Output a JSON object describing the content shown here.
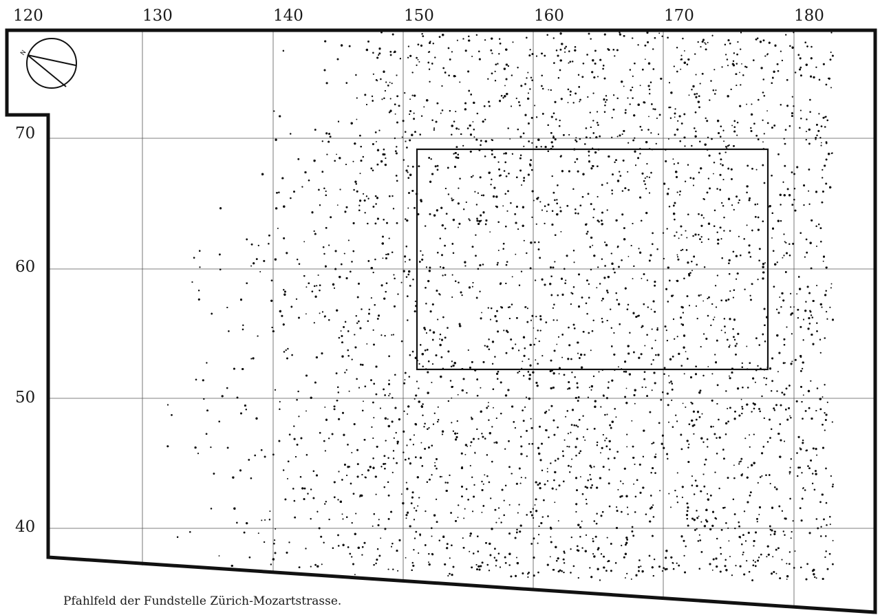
{
  "map": {
    "x_ticks": [
      "120",
      "130",
      "140",
      "150",
      "160",
      "170",
      "180"
    ],
    "y_ticks": [
      "70",
      "60",
      "50",
      "40"
    ],
    "north_label": "N",
    "caption": "Pfahlfeld der Fundstelle Zürich-Mozartstrasse.",
    "colors": {
      "ink": "#111111",
      "grid": "#555555",
      "paper": "#ffffff"
    }
  },
  "chart_data": {
    "type": "scatter",
    "title": "",
    "x_ticks": [
      120,
      130,
      140,
      150,
      160,
      170,
      180
    ],
    "y_ticks": [
      40,
      50,
      60,
      70
    ],
    "xlim": [
      120,
      183
    ],
    "ylim": [
      35,
      79
    ],
    "grid": true,
    "legend": "none",
    "inset_rectangle": {
      "x": [
        151,
        178
      ],
      "y": [
        52,
        69
      ]
    },
    "point_density": "dense pile field, densest around x 150–180, y 52–78"
  }
}
